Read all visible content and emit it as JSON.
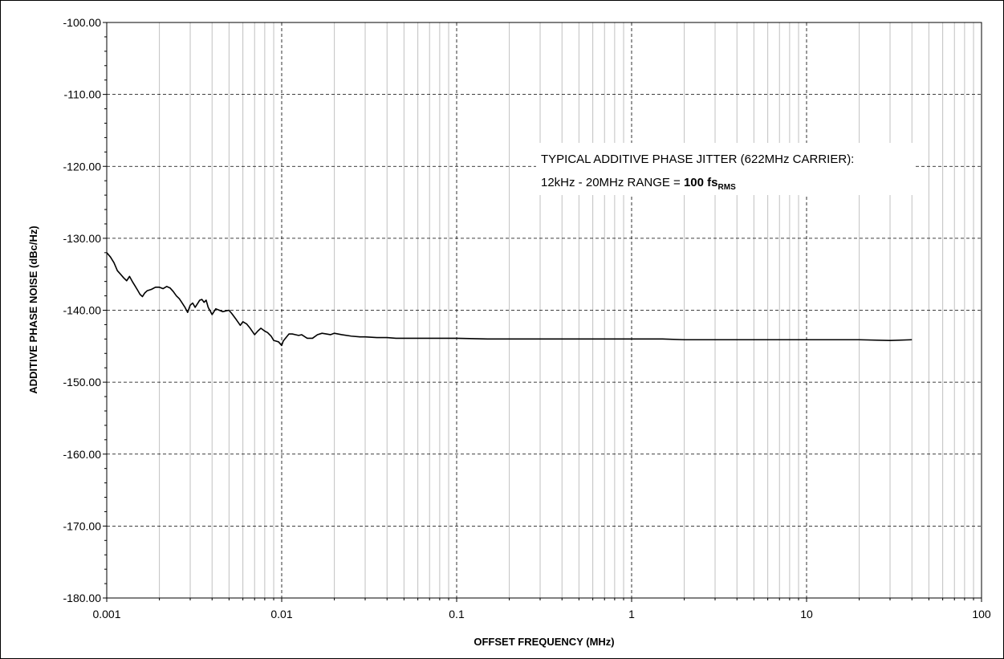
{
  "chart_data": {
    "type": "line",
    "xscale": "log",
    "xlim": [
      0.001,
      100
    ],
    "ylim": [
      -180,
      -100
    ],
    "grid": true,
    "xlabel": "OFFSET FREQUENCY (MHz)",
    "ylabel": "ADDITIVE PHASE NOISE (dBc/Hz)",
    "x_ticks": [
      "0.001",
      "0.01",
      "0.1",
      "1",
      "10",
      "100"
    ],
    "y_ticks": [
      "-100.00",
      "-110.00",
      "-120.00",
      "-130.00",
      "-140.00",
      "-150.00",
      "-160.00",
      "-170.00",
      "-180.00"
    ],
    "annotation": {
      "line1": "TYPICAL ADDITIVE PHASE JITTER (622MHz CARRIER):",
      "line2_prefix": "12kHz - 20MHz RANGE = ",
      "value": "100 fs",
      "sub": "RMS"
    },
    "series": [
      {
        "color": "#000000",
        "x": [
          0.001,
          0.00105,
          0.0011,
          0.00115,
          0.0012,
          0.00125,
          0.0013,
          0.00135,
          0.0014,
          0.00145,
          0.0015,
          0.00155,
          0.0016,
          0.00165,
          0.0017,
          0.0018,
          0.0019,
          0.002,
          0.0021,
          0.0022,
          0.0023,
          0.0024,
          0.0025,
          0.0026,
          0.0027,
          0.0028,
          0.0029,
          0.003,
          0.0031,
          0.0032,
          0.0033,
          0.0034,
          0.0035,
          0.0036,
          0.0037,
          0.0038,
          0.0039,
          0.004,
          0.0042,
          0.0044,
          0.0046,
          0.0048,
          0.005,
          0.0052,
          0.0055,
          0.0058,
          0.006,
          0.0063,
          0.0066,
          0.007,
          0.0073,
          0.0076,
          0.008,
          0.0083,
          0.0087,
          0.009,
          0.0093,
          0.0096,
          0.01,
          0.0102,
          0.0105,
          0.011,
          0.0115,
          0.012,
          0.0125,
          0.013,
          0.014,
          0.015,
          0.016,
          0.017,
          0.018,
          0.019,
          0.02,
          0.022,
          0.025,
          0.028,
          0.03,
          0.035,
          0.04,
          0.045,
          0.05,
          0.06,
          0.07,
          0.08,
          0.1,
          0.15,
          0.2,
          0.3,
          0.5,
          0.7,
          1,
          1.5,
          2,
          3,
          5,
          7,
          10,
          15,
          20,
          30,
          40
        ],
        "values": [
          -132.0,
          -132.6,
          -133.4,
          -134.5,
          -135.0,
          -135.5,
          -135.9,
          -135.3,
          -136.0,
          -136.6,
          -137.2,
          -137.8,
          -138.1,
          -137.6,
          -137.3,
          -137.1,
          -136.8,
          -136.8,
          -137.0,
          -136.7,
          -136.9,
          -137.4,
          -138.0,
          -138.4,
          -139.0,
          -139.6,
          -140.3,
          -139.3,
          -139.0,
          -139.6,
          -139.1,
          -138.6,
          -138.5,
          -138.9,
          -138.6,
          -139.6,
          -140.1,
          -140.6,
          -139.8,
          -140.0,
          -140.2,
          -140.1,
          -140.0,
          -140.5,
          -141.3,
          -142.1,
          -141.6,
          -141.9,
          -142.5,
          -143.4,
          -142.9,
          -142.5,
          -142.9,
          -143.1,
          -143.6,
          -144.2,
          -144.3,
          -144.4,
          -144.9,
          -144.3,
          -143.9,
          -143.3,
          -143.3,
          -143.4,
          -143.5,
          -143.4,
          -143.9,
          -143.9,
          -143.4,
          -143.2,
          -143.3,
          -143.4,
          -143.2,
          -143.4,
          -143.6,
          -143.7,
          -143.7,
          -143.8,
          -143.8,
          -143.9,
          -143.9,
          -143.9,
          -143.9,
          -143.9,
          -143.9,
          -144.0,
          -144.0,
          -144.0,
          -144.0,
          -144.0,
          -144.0,
          -144.0,
          -144.1,
          -144.1,
          -144.1,
          -144.1,
          -144.1,
          -144.1,
          -144.1,
          -144.2,
          -144.1
        ]
      }
    ]
  }
}
